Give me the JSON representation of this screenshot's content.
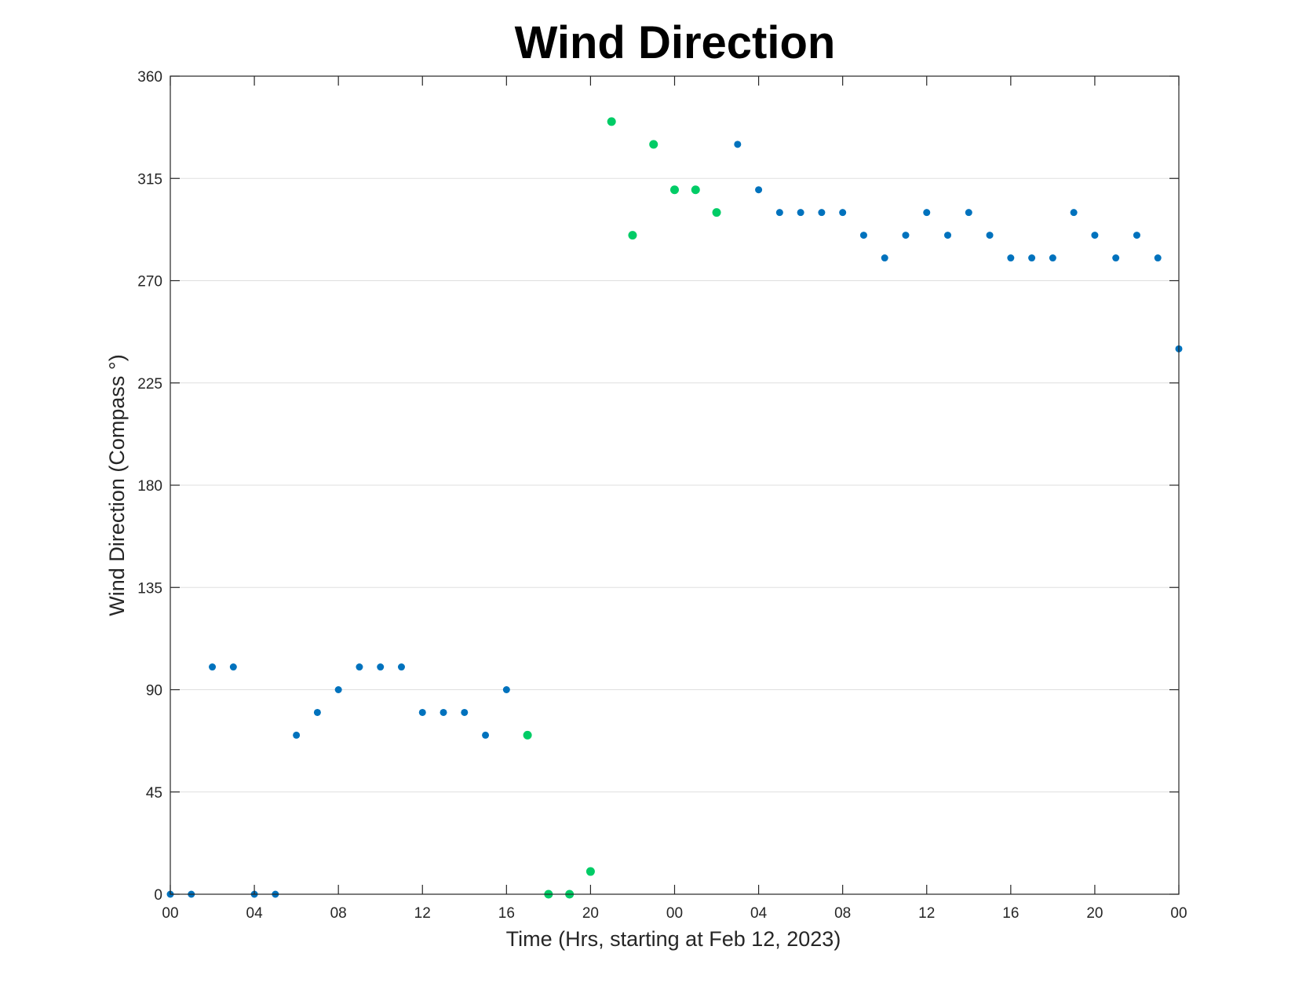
{
  "chart_data": {
    "type": "scatter",
    "title": "Wind Direction",
    "xlabel": "Time (Hrs, starting at Feb 12, 2023)",
    "ylabel": "Wind Direction (Compass °)",
    "x_unit": "hours",
    "xlim": [
      0,
      48
    ],
    "ylim": [
      0,
      360
    ],
    "x_ticks": [
      0,
      4,
      8,
      12,
      16,
      20,
      24,
      28,
      32,
      36,
      40,
      44,
      48
    ],
    "x_tick_labels": [
      "00",
      "04",
      "08",
      "12",
      "16",
      "20",
      "00",
      "04",
      "08",
      "12",
      "16",
      "20",
      "00"
    ],
    "y_ticks": [
      0,
      45,
      90,
      135,
      180,
      225,
      270,
      315,
      360
    ],
    "y_tick_labels": [
      "0",
      "45",
      "90",
      "135",
      "180",
      "225",
      "270",
      "315",
      "360"
    ],
    "grid": "horizontal",
    "colors": {
      "blue": "#0072bd",
      "green": "#00cc66"
    },
    "series": [
      {
        "color": "#0072bd",
        "x": [
          0,
          1,
          2,
          3,
          4,
          5,
          6,
          7,
          8,
          9,
          10,
          11,
          12,
          13,
          14,
          15,
          16,
          27,
          28,
          29,
          30,
          31,
          32,
          33,
          34,
          35,
          36,
          37,
          38,
          39,
          40,
          41,
          42,
          43,
          44,
          45,
          46,
          47,
          48
        ],
        "y": [
          0,
          0,
          100,
          100,
          0,
          0,
          70,
          80,
          90,
          100,
          100,
          100,
          80,
          80,
          80,
          70,
          90,
          330,
          310,
          300,
          300,
          300,
          300,
          290,
          280,
          290,
          300,
          290,
          300,
          290,
          280,
          280,
          280,
          300,
          290,
          280,
          290,
          280,
          240
        ]
      },
      {
        "color": "#00cc66",
        "x": [
          17,
          18,
          19,
          20,
          21,
          22,
          23,
          24,
          25,
          26
        ],
        "y": [
          70,
          0,
          0,
          10,
          340,
          290,
          330,
          310,
          310,
          300
        ]
      }
    ]
  }
}
